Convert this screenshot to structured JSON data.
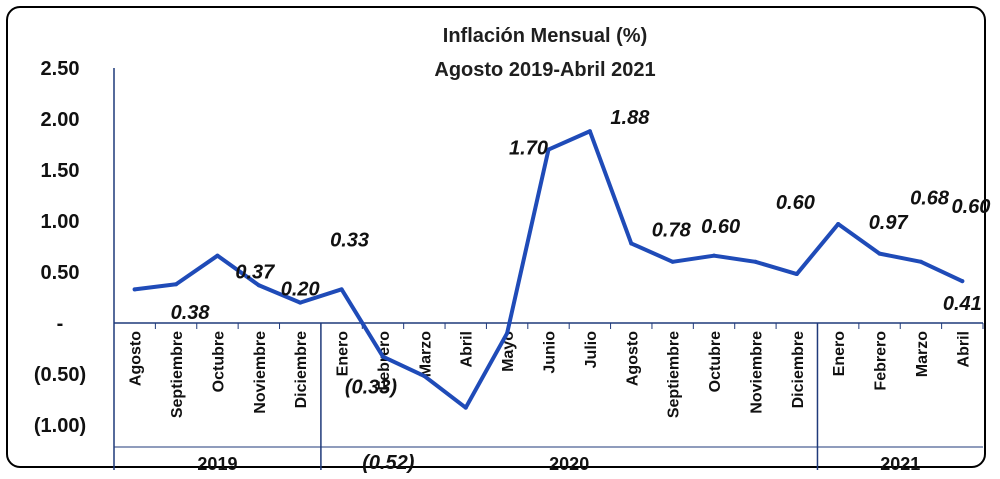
{
  "chart_data": {
    "type": "line",
    "title": "Inflación Mensual (%)",
    "subtitle": "Agosto 2019-Abril 2021",
    "xlabel": "",
    "ylabel": "",
    "ylim": [
      -1.0,
      2.5
    ],
    "y_ticks": [
      "2.50",
      "2.00",
      "1.50",
      "1.00",
      "0.50",
      "-",
      "(0.50)",
      "(1.00)"
    ],
    "categories": [
      "Agosto",
      "Septiembre",
      "Octubre",
      "Noviembre",
      "Diciembre",
      "Enero",
      "Febrero",
      "Marzo",
      "Abril",
      "Mayo",
      "Junio",
      "Julio",
      "Agosto",
      "Septiembre",
      "Octubre",
      "Noviembre",
      "Diciembre",
      "Enero",
      "Febrero",
      "Marzo",
      "Abril"
    ],
    "years": [
      {
        "label": "2019",
        "count": 5
      },
      {
        "label": "2020",
        "count": 12
      },
      {
        "label": "2021",
        "count": 4
      }
    ],
    "series": [
      {
        "color": "#1f4bb8",
        "values": [
          0.33,
          0.38,
          0.66,
          0.37,
          0.2,
          0.33,
          -0.33,
          -0.52,
          -0.83,
          -0.1,
          1.7,
          1.88,
          0.78,
          0.6,
          0.66,
          0.6,
          0.48,
          0.97,
          0.68,
          0.6,
          0.41
        ]
      }
    ],
    "data_labels": [
      "0.38",
      "0.37",
      "0.20",
      "0.33",
      "(0.33)",
      "(0.52)",
      "1.70",
      "1.88",
      "0.78",
      "0.60",
      "0.60",
      "0.97",
      "0.68",
      "0.60",
      "0.41"
    ]
  }
}
